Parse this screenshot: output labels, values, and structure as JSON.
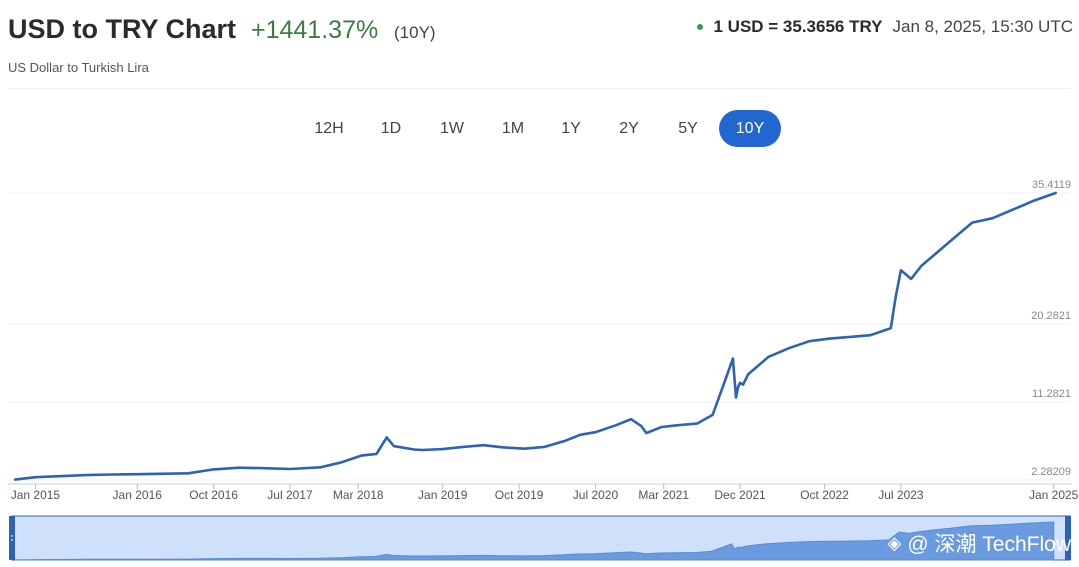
{
  "header": {
    "title": "USD to TRY Chart",
    "change": "+1441.37%",
    "period": "(10Y)",
    "subtitle": "US Dollar to Turkish Lira",
    "rate": "1 USD = 35.3656 TRY",
    "timestamp": "Jan 8, 2025, 15:30 UTC",
    "status_color": "#3c9a50"
  },
  "tabs": [
    {
      "label": "12H",
      "active": false
    },
    {
      "label": "1D",
      "active": false
    },
    {
      "label": "1W",
      "active": false
    },
    {
      "label": "1M",
      "active": false
    },
    {
      "label": "1Y",
      "active": false
    },
    {
      "label": "2Y",
      "active": false
    },
    {
      "label": "5Y",
      "active": false
    },
    {
      "label": "10Y",
      "active": true
    }
  ],
  "watermark": {
    "icon": "binance-logo-icon",
    "text": "@ 深潮 TechFlow"
  },
  "chart_data": {
    "type": "line",
    "title": "USD to TRY Chart",
    "xlabel": "",
    "ylabel": "",
    "line_color": "#2c62b8",
    "y_ticks": [
      "35.4119",
      "20.2821",
      "11.2821",
      "2.28209"
    ],
    "y_tick_values": [
      35.4119,
      20.2821,
      11.2821,
      2.28209
    ],
    "x_ticks": [
      {
        "label": "Jan 2015",
        "t": 2015.0
      },
      {
        "label": "Jan 2016",
        "t": 2016.0
      },
      {
        "label": "Oct 2016",
        "t": 2016.75
      },
      {
        "label": "Jul 2017",
        "t": 2017.5
      },
      {
        "label": "Mar 2018",
        "t": 2018.17
      },
      {
        "label": "Jan 2019",
        "t": 2019.0
      },
      {
        "label": "Oct 2019",
        "t": 2019.75
      },
      {
        "label": "Jul 2020",
        "t": 2020.5
      },
      {
        "label": "Mar 2021",
        "t": 2021.17
      },
      {
        "label": "Dec 2021",
        "t": 2021.92
      },
      {
        "label": "Oct 2022",
        "t": 2022.75
      },
      {
        "label": "Jul 2023",
        "t": 2023.5
      },
      {
        "label": "Jan 2025",
        "t": 2025.0
      }
    ],
    "xlim": [
      2014.77,
      2025.18
    ],
    "ylim": [
      2.28209,
      35.4119
    ],
    "grid": true,
    "series": [
      {
        "x": [
          2014.8,
          2015.0,
          2015.5,
          2015.75,
          2016.0,
          2016.5,
          2016.75,
          2017.0,
          2017.2,
          2017.5,
          2017.8,
          2018.0,
          2018.2,
          2018.35,
          2018.45,
          2018.52,
          2018.62,
          2018.72,
          2018.8,
          2019.0,
          2019.2,
          2019.4,
          2019.6,
          2019.8,
          2020.0,
          2020.2,
          2020.35,
          2020.5,
          2020.7,
          2020.85,
          2020.95,
          2021.0,
          2021.15,
          2021.3,
          2021.5,
          2021.65,
          2021.78,
          2021.85,
          2021.88,
          2021.9,
          2021.92,
          2021.95,
          2022.0,
          2022.2,
          2022.4,
          2022.6,
          2022.8,
          2023.0,
          2023.2,
          2023.4,
          2023.45,
          2023.5,
          2023.55,
          2023.6,
          2023.7,
          2023.85,
          2024.0,
          2024.2,
          2024.4,
          2024.6,
          2024.8,
          2025.02
        ],
        "y": [
          2.33,
          2.6,
          2.85,
          2.92,
          2.95,
          3.05,
          3.5,
          3.7,
          3.65,
          3.55,
          3.75,
          4.3,
          5.1,
          5.3,
          7.2,
          6.2,
          6.0,
          5.8,
          5.75,
          5.85,
          6.1,
          6.3,
          6.05,
          5.9,
          6.1,
          6.8,
          7.5,
          7.8,
          8.6,
          9.3,
          8.5,
          7.7,
          8.4,
          8.6,
          8.8,
          9.8,
          14.0,
          16.3,
          11.8,
          13.0,
          13.5,
          13.3,
          14.5,
          16.5,
          17.5,
          18.3,
          18.6,
          18.8,
          19.0,
          19.8,
          23.5,
          26.5,
          26.0,
          25.5,
          27.0,
          28.5,
          30.0,
          32.0,
          32.5,
          33.5,
          34.5,
          35.41
        ]
      }
    ]
  }
}
